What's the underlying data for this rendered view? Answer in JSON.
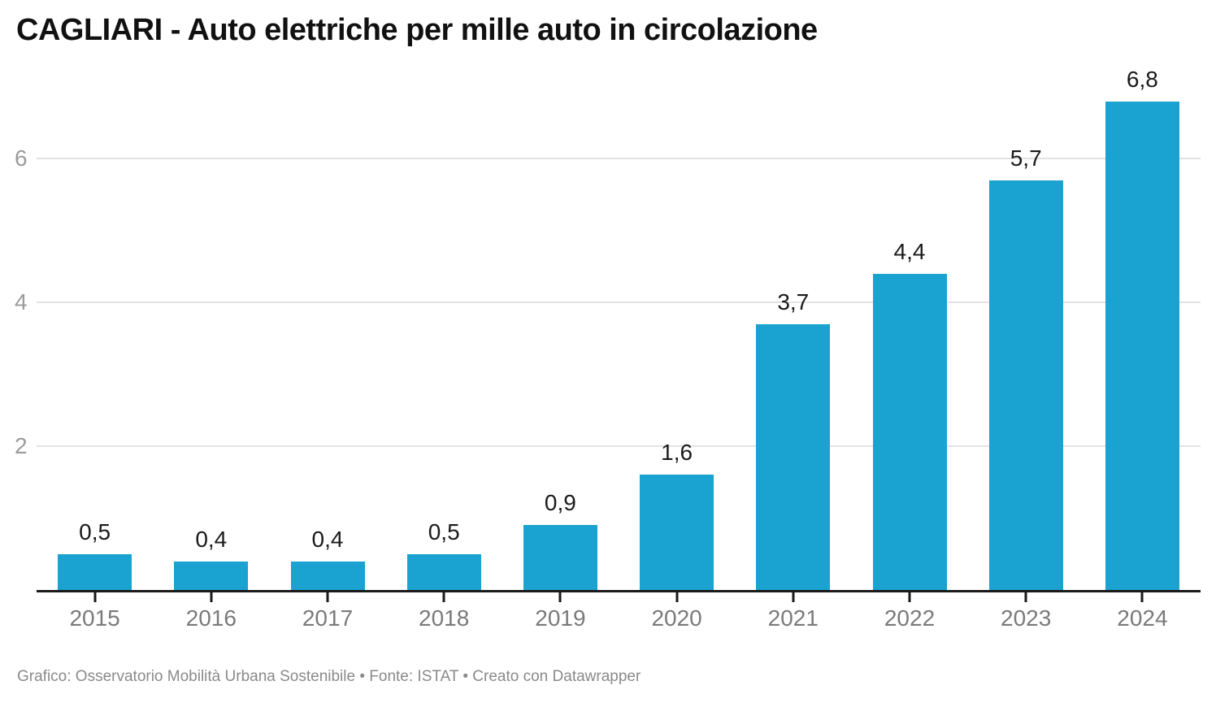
{
  "header": {
    "title": "CAGLIARI - Auto elettriche per mille auto in circolazione"
  },
  "chart_data": {
    "type": "bar",
    "title": "CAGLIARI - Auto elettriche per mille auto in circolazione",
    "categories": [
      "2015",
      "2016",
      "2017",
      "2018",
      "2019",
      "2020",
      "2021",
      "2022",
      "2023",
      "2024"
    ],
    "values": [
      0.5,
      0.4,
      0.4,
      0.5,
      0.9,
      1.6,
      3.7,
      4.4,
      5.7,
      6.8
    ],
    "value_labels": [
      "0,5",
      "0,4",
      "0,4",
      "0,5",
      "0,9",
      "1,6",
      "3,7",
      "4,4",
      "5,7",
      "6,8"
    ],
    "xlabel": "",
    "ylabel": "",
    "ylim": [
      0,
      7.1
    ],
    "yticks": [
      2,
      4,
      6
    ],
    "ytick_labels": [
      "2",
      "4",
      "6"
    ],
    "grid": true,
    "legend": "none",
    "decimal_separator": ","
  },
  "footer": {
    "text": "Grafico: Osservatorio Mobilità Urbana Sostenibile • Fonte: ISTAT • Creato con Datawrapper"
  },
  "colors": {
    "bar": "#1aa2d0",
    "grid": "#e3e3e3",
    "axis": "#1a1a1a",
    "title": "#111111",
    "value_label": "#1a1a1a",
    "x_label": "#7a7a7a",
    "y_label": "#9b9b9b",
    "footer": "#8a8a8a",
    "background": "#ffffff"
  }
}
